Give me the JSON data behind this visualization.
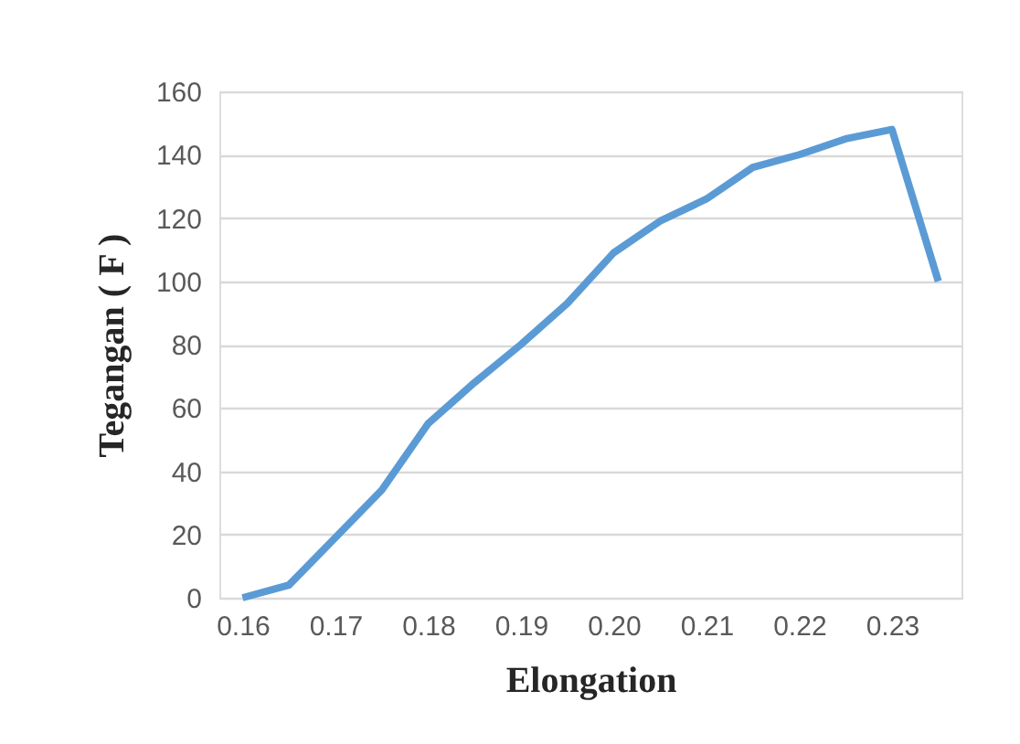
{
  "chart_data": {
    "type": "line",
    "xlabel": "Elongation",
    "ylabel": "Tegangan ( F )",
    "x": [
      0.16,
      0.165,
      0.17,
      0.175,
      0.18,
      0.185,
      0.19,
      0.195,
      0.2,
      0.205,
      0.21,
      0.215,
      0.22,
      0.225,
      0.23,
      0.235
    ],
    "series": [
      {
        "color": "#5b9bd5",
        "values": [
          0,
          4,
          19,
          34,
          55,
          68,
          80,
          93,
          109,
          119,
          126,
          136,
          140,
          145,
          148,
          100
        ]
      }
    ],
    "xlim": [
      0.1575,
      0.2375
    ],
    "xticks": [
      0.16,
      0.17,
      0.18,
      0.19,
      {
        "value": 0.2,
        "label": "0.20"
      },
      0.21,
      0.22,
      0.23
    ],
    "ylim": [
      0,
      160
    ],
    "yticks": [
      0,
      20,
      40,
      60,
      80,
      100,
      120,
      140,
      160
    ],
    "grid": "y",
    "marker": "none",
    "line_style": "solid"
  }
}
